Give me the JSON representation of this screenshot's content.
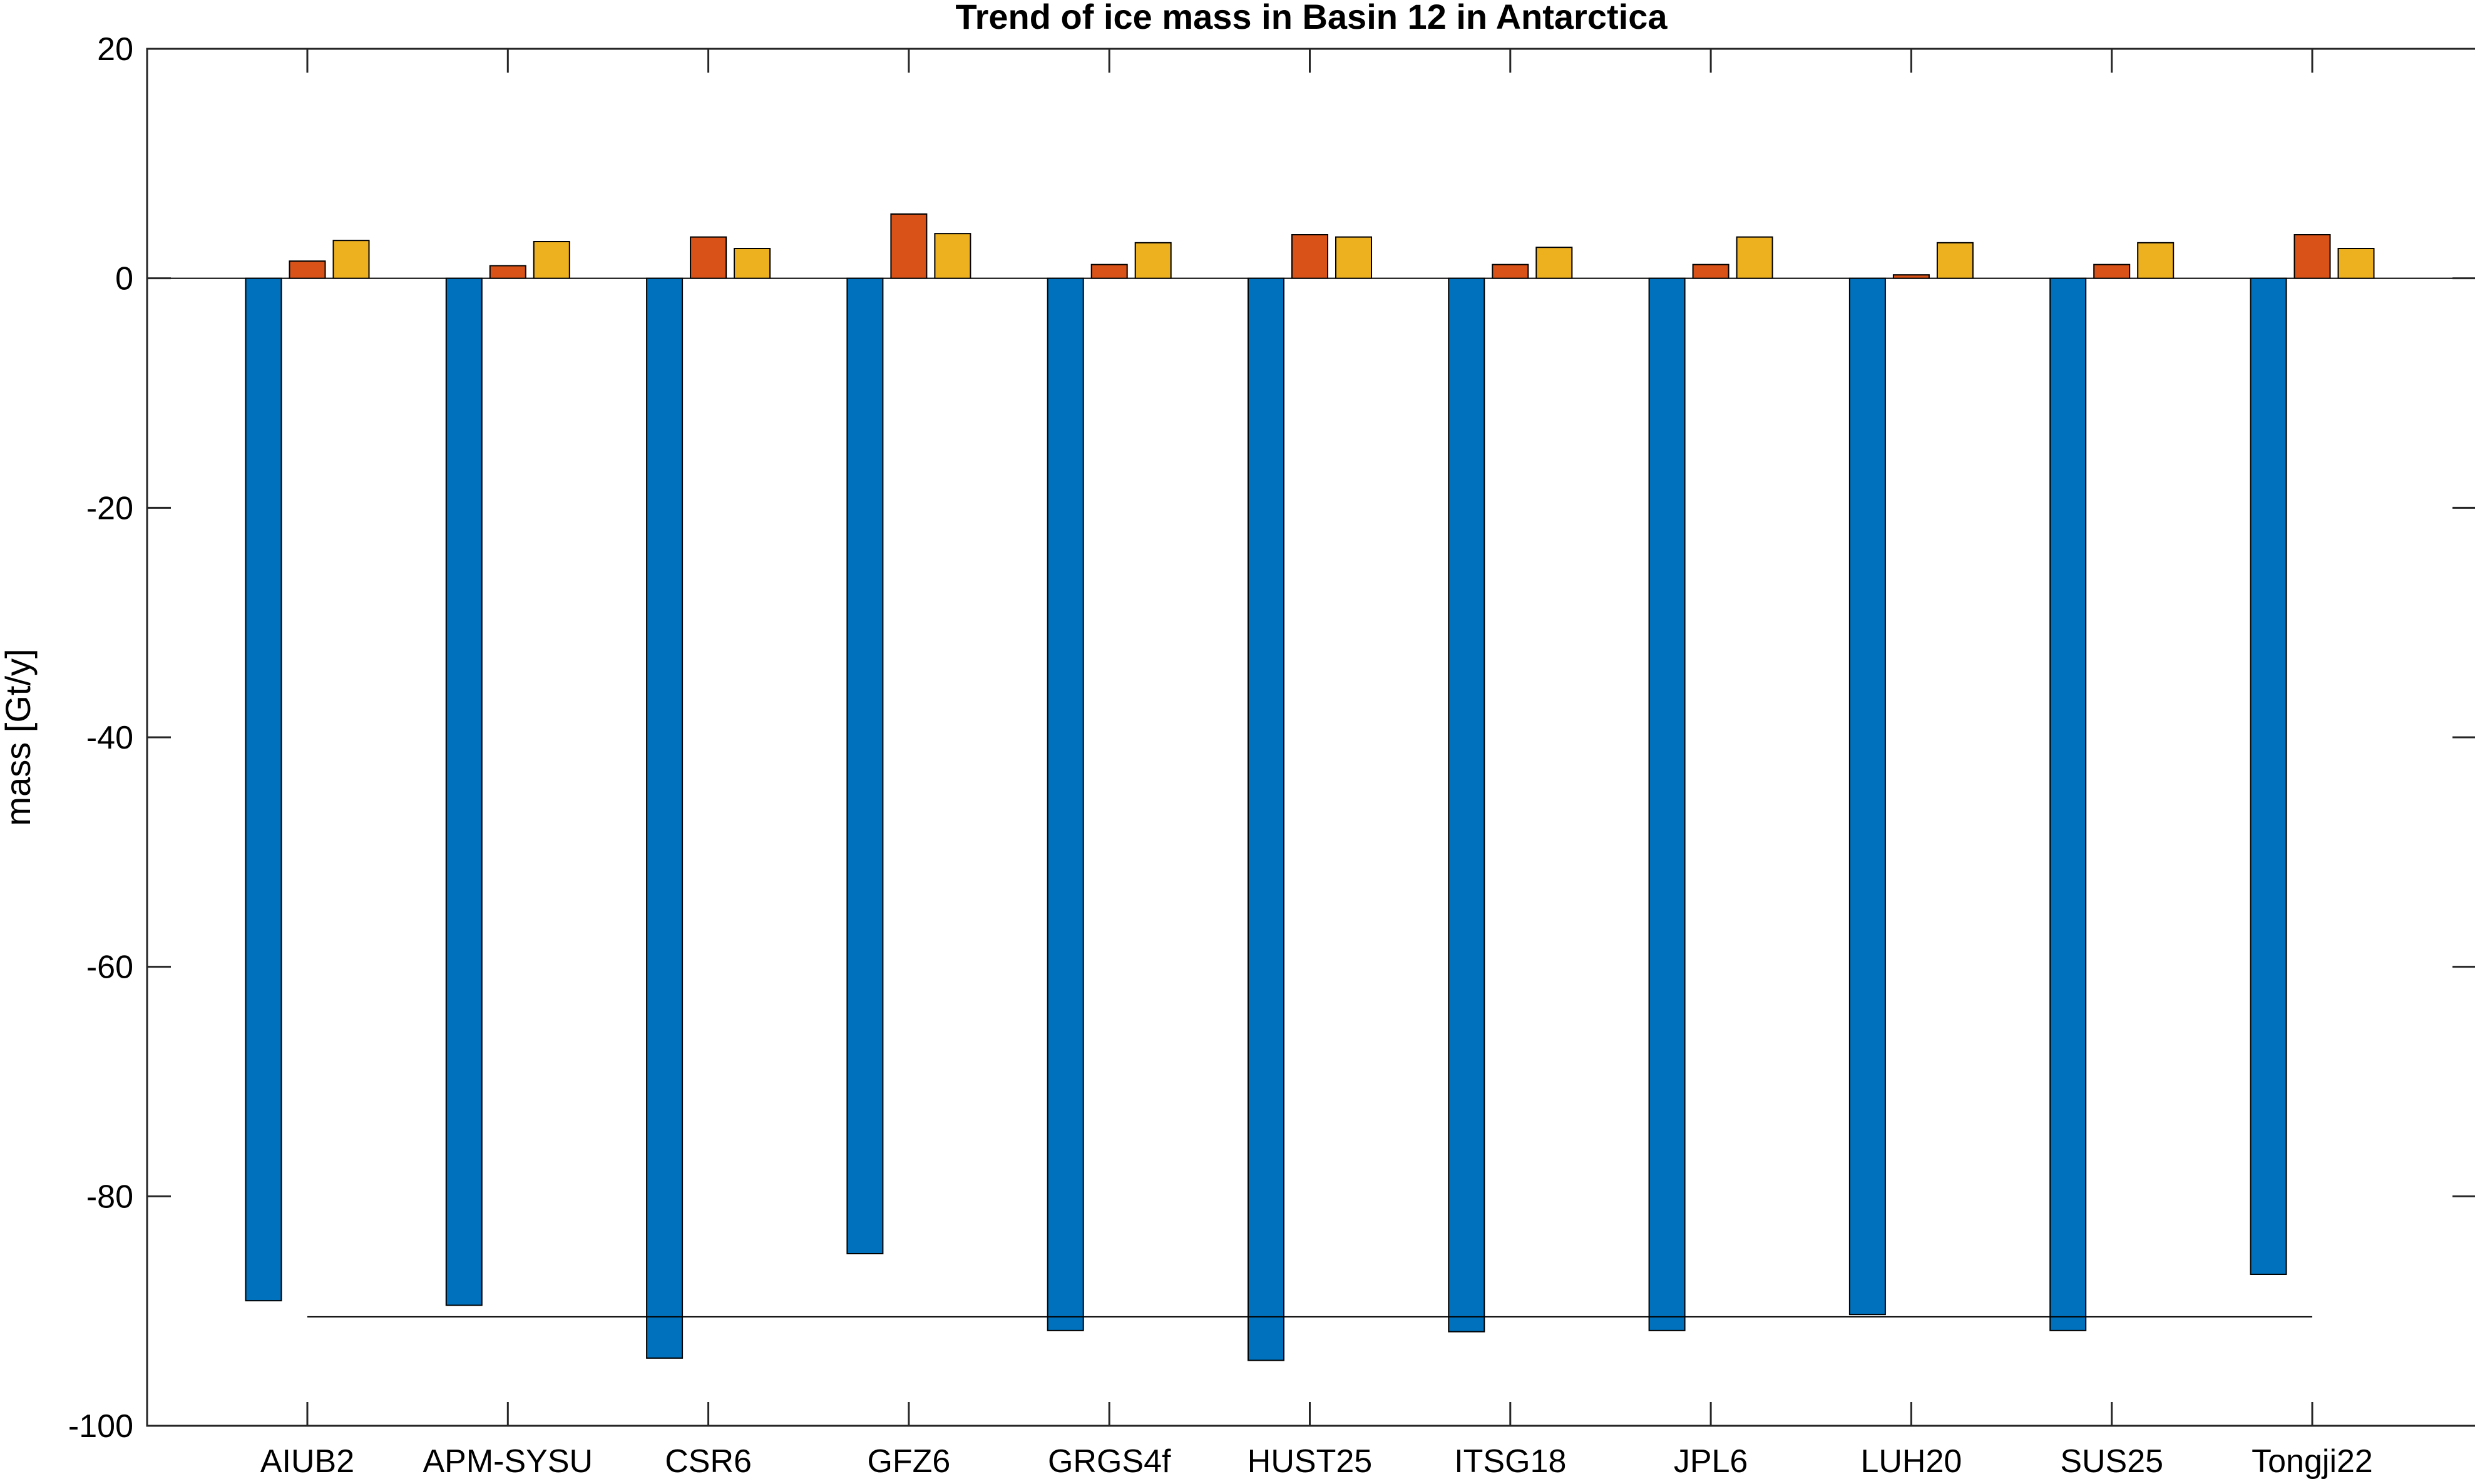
{
  "chart_data": {
    "type": "bar",
    "title": "Trend of ice mass in Basin 12 in Antarctica",
    "xlabel": "",
    "ylabel": "mass [Gt/y]",
    "ylim": [
      -100,
      20
    ],
    "yticks": [
      20,
      0,
      -20,
      -40,
      -60,
      -80,
      -100
    ],
    "ytick_labels": [
      "20",
      "0",
      "-20",
      "-40",
      "-60",
      "-80",
      "-100"
    ],
    "categories": [
      "AIUB2",
      "APM-SYSU",
      "CSR6",
      "GFZ6",
      "GRGS4f",
      "HUST25",
      "ITSG18",
      "JPL6",
      "LUH20",
      "SUS25",
      "Tongji22"
    ],
    "series": [
      {
        "color": "#0072BD",
        "values": [
          -89.1,
          -89.5,
          -94.1,
          -85.0,
          -91.7,
          -94.3,
          -91.8,
          -91.7,
          -90.3,
          -91.7,
          -86.8
        ]
      },
      {
        "color": "#D95319",
        "values": [
          1.5,
          1.1,
          3.6,
          5.6,
          1.2,
          3.8,
          1.2,
          1.2,
          0.3,
          1.2,
          3.8
        ]
      },
      {
        "color": "#EDB120",
        "values": [
          3.3,
          3.2,
          2.6,
          3.9,
          3.1,
          3.6,
          2.7,
          3.6,
          3.1,
          3.1,
          2.6
        ]
      }
    ],
    "reference_line": {
      "value": -90.5,
      "from_category": "AIUB2",
      "to_category": "Tongji22"
    },
    "grid": false,
    "legend": "none"
  }
}
